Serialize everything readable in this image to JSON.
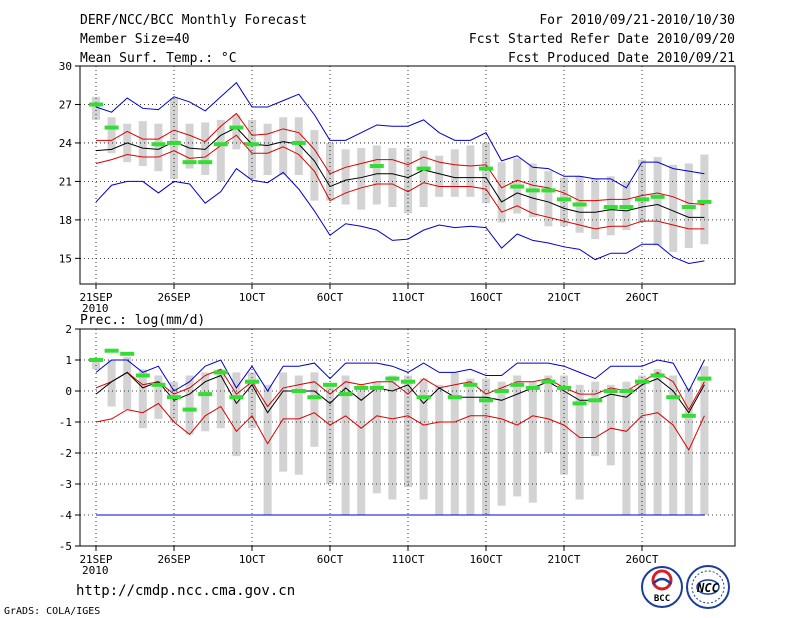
{
  "header": {
    "title_left": "DERF/NCC/BCC Monthly Forecast",
    "member_size": "Member Size=40",
    "variable_label": "Mean Surf. Temp.: °C",
    "period": "For 2010/09/21-2010/10/30",
    "start_date": "Fcst Started Refer Date 2010/09/20",
    "produced_date": "Fcst Produced Date 2010/09/21"
  },
  "footer": {
    "url": "http://cmdp.ncc.cma.gov.cn",
    "grads_credit": "GrADS: COLA/IGES",
    "logo_bcc_text": "BCC",
    "logo_ncc_text": "NCC"
  },
  "colors": {
    "envelope": "#0000cc",
    "spread": "#dd0000",
    "mean": "#000000",
    "box": "#d3d3d3",
    "marker": "#33dd33"
  },
  "chart_data": [
    {
      "type": "box",
      "title": "Mean Surf. Temp.: °C",
      "ylim": [
        13,
        30
      ],
      "yticks": [
        15,
        18,
        21,
        24,
        27,
        30
      ],
      "xtick_labels": [
        "21SEP",
        "26SEP",
        "1OCT",
        "6OCT",
        "11OCT",
        "16OCT",
        "21OCT",
        "26OCT"
      ],
      "xtick_days": [
        1,
        6,
        11,
        16,
        21,
        26,
        31,
        36
      ],
      "x_year_label": "2010",
      "x_days": [
        1,
        2,
        3,
        4,
        5,
        6,
        7,
        8,
        9,
        10,
        11,
        12,
        13,
        14,
        15,
        16,
        17,
        18,
        19,
        20,
        21,
        22,
        23,
        24,
        25,
        26,
        27,
        28,
        29,
        30,
        31,
        32,
        33,
        34,
        35,
        36,
        37,
        38,
        39,
        40
      ],
      "series": [
        {
          "name": "max",
          "values": [
            26.8,
            26.4,
            27.5,
            26.7,
            26.6,
            27.6,
            27.2,
            26.5,
            27.6,
            28.7,
            26.8,
            26.8,
            27.3,
            27.8,
            26.2,
            24.2,
            24.2,
            24.8,
            25.4,
            25.3,
            25.3,
            25.8,
            24.8,
            24.2,
            24.2,
            24.8,
            22.6,
            23.0,
            22.1,
            22.0,
            21.4,
            21.4,
            21.2,
            21.2,
            20.5,
            22.5,
            22.5,
            22.0,
            21.8,
            21.6
          ]
        },
        {
          "name": "upper",
          "values": [
            24.2,
            24.2,
            24.9,
            24.3,
            24.3,
            25.0,
            24.6,
            24.1,
            25.3,
            26.3,
            24.6,
            24.7,
            25.1,
            24.8,
            23.5,
            21.6,
            22.1,
            22.4,
            22.7,
            22.7,
            22.3,
            22.9,
            22.5,
            22.3,
            22.2,
            22.3,
            20.5,
            21.1,
            20.7,
            20.5,
            20.1,
            19.5,
            19.5,
            19.6,
            19.6,
            19.9,
            20.1,
            19.8,
            19.3,
            19.2
          ]
        },
        {
          "name": "mean",
          "values": [
            23.4,
            23.5,
            24.0,
            23.6,
            23.5,
            24.1,
            23.6,
            23.5,
            24.6,
            25.2,
            23.9,
            23.8,
            24.1,
            23.9,
            22.6,
            20.6,
            21.1,
            21.3,
            21.6,
            21.6,
            21.3,
            21.9,
            21.6,
            21.3,
            21.3,
            21.3,
            19.4,
            20.1,
            19.7,
            19.4,
            18.9,
            18.6,
            18.6,
            18.8,
            18.7,
            19.0,
            19.2,
            18.7,
            18.2,
            18.2
          ]
        },
        {
          "name": "lower",
          "values": [
            22.4,
            22.7,
            23.1,
            22.9,
            22.9,
            23.4,
            22.8,
            22.9,
            23.8,
            24.6,
            23.2,
            23.2,
            23.7,
            23.1,
            21.8,
            19.5,
            20.1,
            20.5,
            20.8,
            20.8,
            20.2,
            20.9,
            20.6,
            20.6,
            20.6,
            20.4,
            18.6,
            19.1,
            18.5,
            18.2,
            17.9,
            17.6,
            17.3,
            17.5,
            17.5,
            17.9,
            17.9,
            17.6,
            17.3,
            17.3
          ]
        },
        {
          "name": "min",
          "values": [
            19.4,
            20.7,
            21.0,
            21.0,
            20.1,
            21.0,
            20.8,
            19.3,
            20.2,
            22.0,
            21.1,
            20.9,
            21.7,
            20.4,
            18.7,
            16.8,
            17.7,
            17.5,
            17.2,
            16.4,
            16.5,
            17.2,
            17.6,
            17.4,
            17.5,
            17.4,
            15.8,
            16.9,
            16.4,
            16.2,
            15.9,
            15.7,
            14.9,
            15.4,
            15.4,
            16.1,
            16.1,
            15.1,
            14.6,
            14.8
          ]
        },
        {
          "name": "box_high",
          "values": [
            27.6,
            26.0,
            25.5,
            25.7,
            25.5,
            27.5,
            25.5,
            25.6,
            25.8,
            26.2,
            25.8,
            25.5,
            26.0,
            26.0,
            25.0,
            24.0,
            23.5,
            23.6,
            23.8,
            23.6,
            23.6,
            23.4,
            23.0,
            23.5,
            23.8,
            24.0,
            22.5,
            22.8,
            22.4,
            21.8,
            21.3,
            21.4,
            21.2,
            21.4,
            21.0,
            22.7,
            22.9,
            22.3,
            22.4,
            23.1
          ]
        },
        {
          "name": "box_low",
          "values": [
            25.8,
            23.2,
            22.5,
            22.2,
            21.8,
            21.2,
            22.0,
            21.5,
            21.0,
            23.5,
            21.2,
            21.5,
            21.5,
            21.5,
            19.5,
            19.5,
            19.2,
            18.8,
            19.2,
            19.0,
            18.5,
            19.0,
            19.8,
            19.8,
            19.8,
            19.3,
            17.8,
            18.5,
            18.2,
            17.5,
            17.5,
            17.0,
            16.5,
            16.8,
            17.2,
            17.8,
            16.0,
            15.5,
            15.8,
            16.1
          ]
        },
        {
          "name": "observed",
          "values": [
            27.0,
            25.2,
            null,
            null,
            23.9,
            24.0,
            22.5,
            22.5,
            23.9,
            25.2,
            23.9,
            null,
            null,
            24.0,
            null,
            null,
            null,
            null,
            22.2,
            null,
            null,
            22.0,
            null,
            null,
            null,
            22.0,
            null,
            20.6,
            20.3,
            20.3,
            19.6,
            19.2,
            null,
            19.0,
            19.0,
            19.6,
            19.8,
            null,
            19.0,
            19.4
          ]
        }
      ]
    },
    {
      "type": "box",
      "title": "Prec.: log(mm/d)",
      "ylim": [
        -5,
        2
      ],
      "yticks": [
        -5,
        -4,
        -3,
        -2,
        -1,
        0,
        1,
        2
      ],
      "xtick_labels": [
        "21SEP",
        "26SEP",
        "1OCT",
        "6OCT",
        "11OCT",
        "16OCT",
        "21OCT",
        "26OCT"
      ],
      "xtick_days": [
        1,
        6,
        11,
        16,
        21,
        26,
        31,
        36
      ],
      "x_year_label": "2010",
      "x_days": [
        1,
        2,
        3,
        4,
        5,
        6,
        7,
        8,
        9,
        10,
        11,
        12,
        13,
        14,
        15,
        16,
        17,
        18,
        19,
        20,
        21,
        22,
        23,
        24,
        25,
        26,
        27,
        28,
        29,
        30,
        31,
        32,
        33,
        34,
        35,
        36,
        37,
        38,
        39,
        40
      ],
      "series": [
        {
          "name": "max",
          "values": [
            0.6,
            1.0,
            1.0,
            0.6,
            0.8,
            0.0,
            0.3,
            0.8,
            1.0,
            0.1,
            0.8,
            0.0,
            0.8,
            0.8,
            0.9,
            0.4,
            0.9,
            0.9,
            0.9,
            0.8,
            0.6,
            0.9,
            0.6,
            0.6,
            0.7,
            0.5,
            0.5,
            0.9,
            0.9,
            0.9,
            0.8,
            0.6,
            0.4,
            0.8,
            0.8,
            0.8,
            1.0,
            0.9,
            0.0,
            1.0
          ]
        },
        {
          "name": "upper",
          "values": [
            0.1,
            0.3,
            0.6,
            0.2,
            0.3,
            -0.1,
            0.1,
            0.5,
            0.7,
            -0.1,
            0.3,
            -0.5,
            0.1,
            0.2,
            0.3,
            -0.1,
            0.3,
            0.2,
            0.3,
            0.3,
            -0.1,
            0.4,
            0.1,
            0.2,
            0.3,
            -0.1,
            0.1,
            0.3,
            0.3,
            0.4,
            0.1,
            -0.1,
            -0.1,
            0.1,
            0.0,
            0.3,
            0.6,
            0.3,
            -0.6,
            0.3
          ]
        },
        {
          "name": "mean",
          "values": [
            -0.1,
            0.3,
            0.6,
            0.1,
            0.3,
            -0.3,
            -0.1,
            0.3,
            0.5,
            -0.4,
            0.2,
            -0.7,
            0.0,
            0.0,
            0.0,
            -0.4,
            0.1,
            -0.3,
            0.1,
            0.0,
            0.2,
            -0.4,
            0.1,
            -0.2,
            -0.2,
            -0.2,
            -0.3,
            -0.1,
            0.1,
            0.3,
            0.0,
            -0.3,
            -0.3,
            -0.1,
            -0.2,
            0.2,
            0.4,
            0.0,
            -0.7,
            0.2
          ]
        },
        {
          "name": "lower",
          "values": [
            -0.1,
            0.0,
            0.3,
            -0.1,
            0.2,
            -0.5,
            -0.2,
            0.1,
            0.4,
            -0.5,
            0.1,
            -0.8,
            -0.2,
            -0.1,
            -0.1,
            -0.5,
            -0.1,
            -0.4,
            0.0,
            -0.1,
            0.0,
            -0.5,
            -0.1,
            -0.3,
            -0.3,
            -0.4,
            -0.5,
            -0.2,
            0.0,
            0.2,
            -0.1,
            -0.4,
            -0.4,
            -0.3,
            -0.3,
            0.1,
            0.2,
            -0.2,
            -0.9,
            0.0
          ]
        },
        {
          "name": "min",
          "values": [
            -1.0,
            -0.9,
            -0.6,
            -0.7,
            -0.4,
            -1.0,
            -1.4,
            -0.8,
            -0.5,
            -1.3,
            -0.8,
            -1.7,
            -0.9,
            -0.9,
            -0.7,
            -1.1,
            -0.8,
            -1.2,
            -0.8,
            -0.9,
            -0.8,
            -1.1,
            -1.0,
            -1.0,
            -0.8,
            -0.8,
            -0.9,
            -1.1,
            -0.8,
            -0.9,
            -1.1,
            -1.5,
            -1.5,
            -1.2,
            -1.3,
            -0.8,
            -0.7,
            -1.1,
            -1.9,
            -0.8
          ]
        },
        {
          "name": "box_high",
          "values": [
            1.0,
            1.0,
            1.1,
            0.7,
            0.5,
            0.3,
            0.5,
            0.6,
            0.7,
            0.6,
            0.6,
            0.2,
            0.6,
            0.5,
            0.6,
            0.2,
            0.5,
            0.2,
            0.3,
            0.5,
            0.5,
            0.4,
            0.2,
            0.6,
            0.4,
            0.4,
            0.3,
            0.5,
            0.3,
            0.5,
            0.5,
            0.2,
            0.3,
            0.2,
            0.3,
            0.5,
            0.7,
            0.5,
            0.1,
            0.8
          ]
        },
        {
          "name": "box_low",
          "values": [
            0.7,
            -0.5,
            -0.6,
            -1.2,
            -0.9,
            -1.0,
            -1.4,
            -1.3,
            -1.2,
            -2.1,
            -1.2,
            -4.0,
            -2.6,
            -2.7,
            -1.8,
            -3.0,
            -4.0,
            -4.0,
            -3.3,
            -3.5,
            -3.1,
            -3.5,
            -4.0,
            -4.0,
            -4.0,
            -4.0,
            -3.7,
            -3.4,
            -3.6,
            -2.0,
            -2.7,
            -3.5,
            -2.1,
            -2.4,
            -4.0,
            -4.0,
            -4.0,
            -4.0,
            -4.0,
            -4.0
          ]
        },
        {
          "name": "floor",
          "values": [
            -4.0,
            -4.0,
            -4.0,
            -4.0,
            -4.0,
            -4.0,
            -4.0,
            -4.0,
            -4.0,
            -4.0,
            -4.0,
            -4.0,
            -4.0,
            -4.0,
            -4.0,
            -4.0,
            -4.0,
            -4.0,
            -4.0,
            -4.0,
            -4.0,
            -4.0,
            -4.0,
            -4.0,
            -4.0,
            -4.0,
            -4.0,
            -4.0,
            -4.0,
            -4.0,
            -4.0,
            -4.0,
            -4.0,
            -4.0,
            -4.0,
            -4.0,
            -4.0,
            -4.0,
            -4.0,
            -4.0
          ]
        },
        {
          "name": "observed",
          "values": [
            1.0,
            1.3,
            1.2,
            0.5,
            0.2,
            -0.2,
            -0.6,
            -0.1,
            0.6,
            -0.2,
            0.3,
            null,
            null,
            0.0,
            -0.2,
            0.2,
            -0.1,
            0.1,
            0.1,
            0.4,
            0.3,
            -0.2,
            null,
            -0.2,
            0.2,
            -0.3,
            0.0,
            0.2,
            0.1,
            0.3,
            0.1,
            -0.4,
            -0.3,
            0.0,
            0.0,
            0.3,
            0.5,
            -0.2,
            -0.8,
            0.4
          ]
        }
      ]
    }
  ]
}
